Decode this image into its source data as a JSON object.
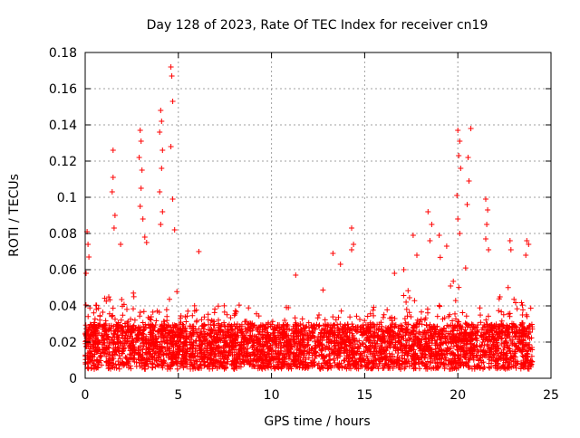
{
  "chart_data": {
    "type": "scatter",
    "title": "Day 128 of 2023, Rate Of TEC Index for receiver cn19",
    "xlabel": "GPS time / hours",
    "ylabel": "ROTI / TECUs",
    "xlim": [
      0,
      25
    ],
    "ylim": [
      0,
      0.18
    ],
    "xticks": [
      0,
      5,
      10,
      15,
      20,
      25
    ],
    "yticks": [
      0,
      0.02,
      0.04,
      0.06,
      0.08,
      0.1,
      0.12,
      0.14,
      0.16,
      0.18
    ],
    "grid": true,
    "marker": "+",
    "colors": {
      "series": "#ff0000",
      "grid": "#a0a0a0",
      "axis": "#000000"
    },
    "series": [
      {
        "name": "cn19",
        "data_range_x": [
          0,
          24
        ],
        "baseline_band": [
          0.005,
          0.03
        ],
        "notable_points": [
          [
            0.1,
            0.081
          ],
          [
            0.15,
            0.074
          ],
          [
            0.2,
            0.067
          ],
          [
            0.05,
            0.058
          ],
          [
            1.5,
            0.126
          ],
          [
            1.5,
            0.111
          ],
          [
            1.45,
            0.103
          ],
          [
            1.6,
            0.09
          ],
          [
            1.55,
            0.083
          ],
          [
            1.9,
            0.074
          ],
          [
            2.95,
            0.137
          ],
          [
            3.0,
            0.131
          ],
          [
            2.9,
            0.122
          ],
          [
            3.05,
            0.115
          ],
          [
            3.0,
            0.105
          ],
          [
            2.95,
            0.095
          ],
          [
            3.1,
            0.088
          ],
          [
            3.2,
            0.078
          ],
          [
            3.3,
            0.075
          ],
          [
            4.05,
            0.148
          ],
          [
            4.1,
            0.142
          ],
          [
            4.0,
            0.136
          ],
          [
            4.15,
            0.126
          ],
          [
            4.1,
            0.116
          ],
          [
            4.0,
            0.103
          ],
          [
            4.15,
            0.092
          ],
          [
            4.05,
            0.085
          ],
          [
            4.6,
            0.172
          ],
          [
            4.65,
            0.167
          ],
          [
            4.7,
            0.153
          ],
          [
            4.6,
            0.128
          ],
          [
            4.7,
            0.099
          ],
          [
            4.8,
            0.082
          ],
          [
            6.1,
            0.07
          ],
          [
            11.3,
            0.057
          ],
          [
            13.3,
            0.069
          ],
          [
            13.7,
            0.063
          ],
          [
            14.3,
            0.083
          ],
          [
            14.4,
            0.074
          ],
          [
            14.3,
            0.071
          ],
          [
            16.6,
            0.058
          ],
          [
            17.1,
            0.06
          ],
          [
            17.6,
            0.079
          ],
          [
            17.8,
            0.068
          ],
          [
            18.4,
            0.092
          ],
          [
            18.6,
            0.085
          ],
          [
            18.5,
            0.076
          ],
          [
            19.0,
            0.079
          ],
          [
            19.4,
            0.073
          ],
          [
            20.0,
            0.137
          ],
          [
            20.1,
            0.131
          ],
          [
            20.05,
            0.123
          ],
          [
            20.15,
            0.116
          ],
          [
            19.95,
            0.101
          ],
          [
            20.0,
            0.088
          ],
          [
            20.1,
            0.08
          ],
          [
            20.7,
            0.138
          ],
          [
            20.55,
            0.122
          ],
          [
            20.6,
            0.109
          ],
          [
            20.5,
            0.096
          ],
          [
            21.5,
            0.099
          ],
          [
            21.6,
            0.093
          ],
          [
            21.55,
            0.085
          ],
          [
            21.5,
            0.077
          ],
          [
            21.65,
            0.071
          ],
          [
            22.8,
            0.076
          ],
          [
            22.85,
            0.071
          ],
          [
            23.7,
            0.076
          ],
          [
            23.8,
            0.074
          ],
          [
            23.65,
            0.068
          ]
        ]
      }
    ]
  }
}
